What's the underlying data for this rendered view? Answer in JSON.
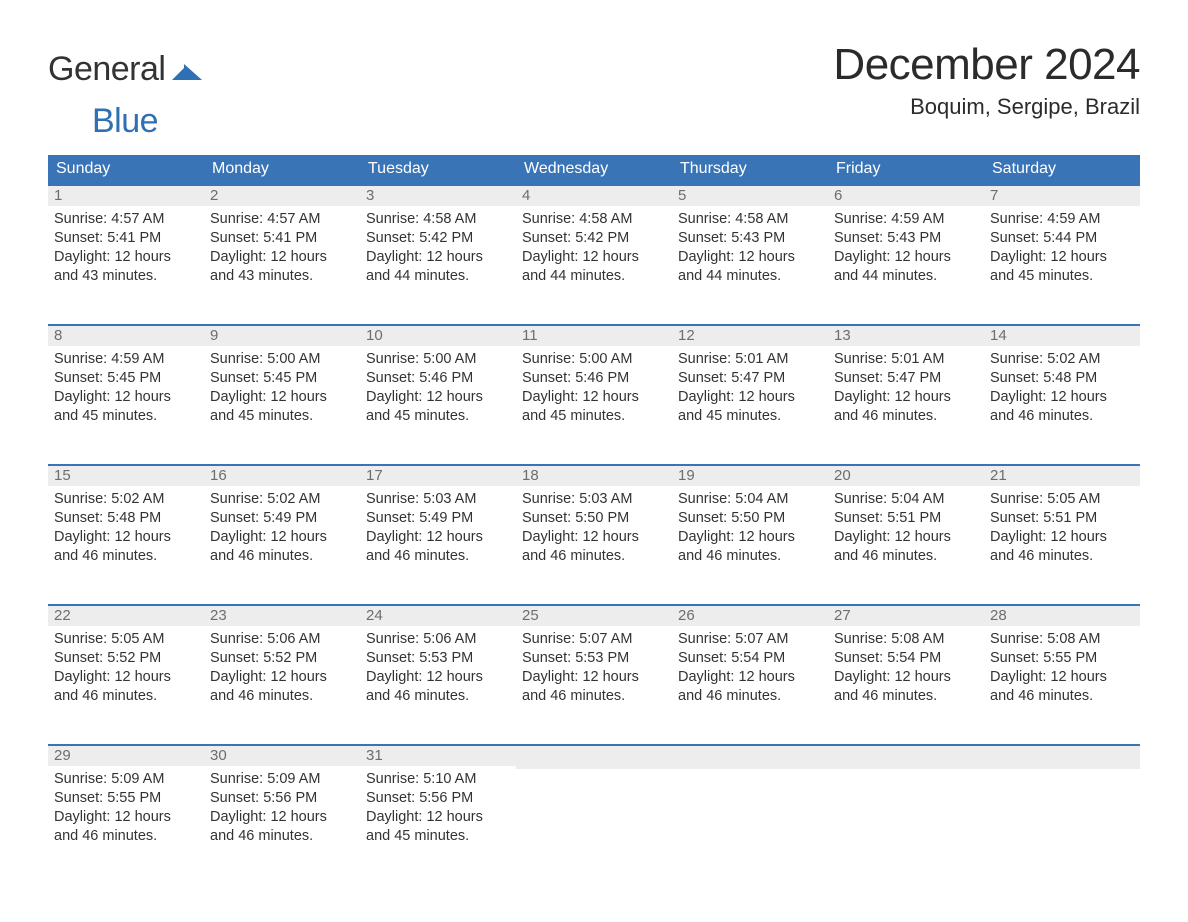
{
  "brand": {
    "word1": "General",
    "word2": "Blue",
    "mark_color": "#2f6fb3",
    "word1_color": "#333333",
    "word2_color": "#2f6fb3"
  },
  "header": {
    "month_title": "December 2024",
    "location": "Boquim, Sergipe, Brazil"
  },
  "colors": {
    "header_bg": "#3974b6",
    "header_text": "#ffffff",
    "week_border": "#3974b6",
    "daynum_bg": "#ededed",
    "daynum_text": "#6d6d6d",
    "body_text": "#333333",
    "background": "#ffffff"
  },
  "typography": {
    "month_title_fontsize": 44,
    "location_fontsize": 22,
    "dow_fontsize": 16,
    "body_fontsize": 14.5
  },
  "labels": {
    "sunrise_prefix": "Sunrise: ",
    "sunset_prefix": "Sunset: ",
    "daylight_prefix": "Daylight: "
  },
  "days_of_week": [
    "Sunday",
    "Monday",
    "Tuesday",
    "Wednesday",
    "Thursday",
    "Friday",
    "Saturday"
  ],
  "weeks": [
    [
      {
        "day": 1,
        "sunrise": "4:57 AM",
        "sunset": "5:41 PM",
        "daylight": "12 hours and 43 minutes."
      },
      {
        "day": 2,
        "sunrise": "4:57 AM",
        "sunset": "5:41 PM",
        "daylight": "12 hours and 43 minutes."
      },
      {
        "day": 3,
        "sunrise": "4:58 AM",
        "sunset": "5:42 PM",
        "daylight": "12 hours and 44 minutes."
      },
      {
        "day": 4,
        "sunrise": "4:58 AM",
        "sunset": "5:42 PM",
        "daylight": "12 hours and 44 minutes."
      },
      {
        "day": 5,
        "sunrise": "4:58 AM",
        "sunset": "5:43 PM",
        "daylight": "12 hours and 44 minutes."
      },
      {
        "day": 6,
        "sunrise": "4:59 AM",
        "sunset": "5:43 PM",
        "daylight": "12 hours and 44 minutes."
      },
      {
        "day": 7,
        "sunrise": "4:59 AM",
        "sunset": "5:44 PM",
        "daylight": "12 hours and 45 minutes."
      }
    ],
    [
      {
        "day": 8,
        "sunrise": "4:59 AM",
        "sunset": "5:45 PM",
        "daylight": "12 hours and 45 minutes."
      },
      {
        "day": 9,
        "sunrise": "5:00 AM",
        "sunset": "5:45 PM",
        "daylight": "12 hours and 45 minutes."
      },
      {
        "day": 10,
        "sunrise": "5:00 AM",
        "sunset": "5:46 PM",
        "daylight": "12 hours and 45 minutes."
      },
      {
        "day": 11,
        "sunrise": "5:00 AM",
        "sunset": "5:46 PM",
        "daylight": "12 hours and 45 minutes."
      },
      {
        "day": 12,
        "sunrise": "5:01 AM",
        "sunset": "5:47 PM",
        "daylight": "12 hours and 45 minutes."
      },
      {
        "day": 13,
        "sunrise": "5:01 AM",
        "sunset": "5:47 PM",
        "daylight": "12 hours and 46 minutes."
      },
      {
        "day": 14,
        "sunrise": "5:02 AM",
        "sunset": "5:48 PM",
        "daylight": "12 hours and 46 minutes."
      }
    ],
    [
      {
        "day": 15,
        "sunrise": "5:02 AM",
        "sunset": "5:48 PM",
        "daylight": "12 hours and 46 minutes."
      },
      {
        "day": 16,
        "sunrise": "5:02 AM",
        "sunset": "5:49 PM",
        "daylight": "12 hours and 46 minutes."
      },
      {
        "day": 17,
        "sunrise": "5:03 AM",
        "sunset": "5:49 PM",
        "daylight": "12 hours and 46 minutes."
      },
      {
        "day": 18,
        "sunrise": "5:03 AM",
        "sunset": "5:50 PM",
        "daylight": "12 hours and 46 minutes."
      },
      {
        "day": 19,
        "sunrise": "5:04 AM",
        "sunset": "5:50 PM",
        "daylight": "12 hours and 46 minutes."
      },
      {
        "day": 20,
        "sunrise": "5:04 AM",
        "sunset": "5:51 PM",
        "daylight": "12 hours and 46 minutes."
      },
      {
        "day": 21,
        "sunrise": "5:05 AM",
        "sunset": "5:51 PM",
        "daylight": "12 hours and 46 minutes."
      }
    ],
    [
      {
        "day": 22,
        "sunrise": "5:05 AM",
        "sunset": "5:52 PM",
        "daylight": "12 hours and 46 minutes."
      },
      {
        "day": 23,
        "sunrise": "5:06 AM",
        "sunset": "5:52 PM",
        "daylight": "12 hours and 46 minutes."
      },
      {
        "day": 24,
        "sunrise": "5:06 AM",
        "sunset": "5:53 PM",
        "daylight": "12 hours and 46 minutes."
      },
      {
        "day": 25,
        "sunrise": "5:07 AM",
        "sunset": "5:53 PM",
        "daylight": "12 hours and 46 minutes."
      },
      {
        "day": 26,
        "sunrise": "5:07 AM",
        "sunset": "5:54 PM",
        "daylight": "12 hours and 46 minutes."
      },
      {
        "day": 27,
        "sunrise": "5:08 AM",
        "sunset": "5:54 PM",
        "daylight": "12 hours and 46 minutes."
      },
      {
        "day": 28,
        "sunrise": "5:08 AM",
        "sunset": "5:55 PM",
        "daylight": "12 hours and 46 minutes."
      }
    ],
    [
      {
        "day": 29,
        "sunrise": "5:09 AM",
        "sunset": "5:55 PM",
        "daylight": "12 hours and 46 minutes."
      },
      {
        "day": 30,
        "sunrise": "5:09 AM",
        "sunset": "5:56 PM",
        "daylight": "12 hours and 46 minutes."
      },
      {
        "day": 31,
        "sunrise": "5:10 AM",
        "sunset": "5:56 PM",
        "daylight": "12 hours and 45 minutes."
      },
      null,
      null,
      null,
      null
    ]
  ]
}
